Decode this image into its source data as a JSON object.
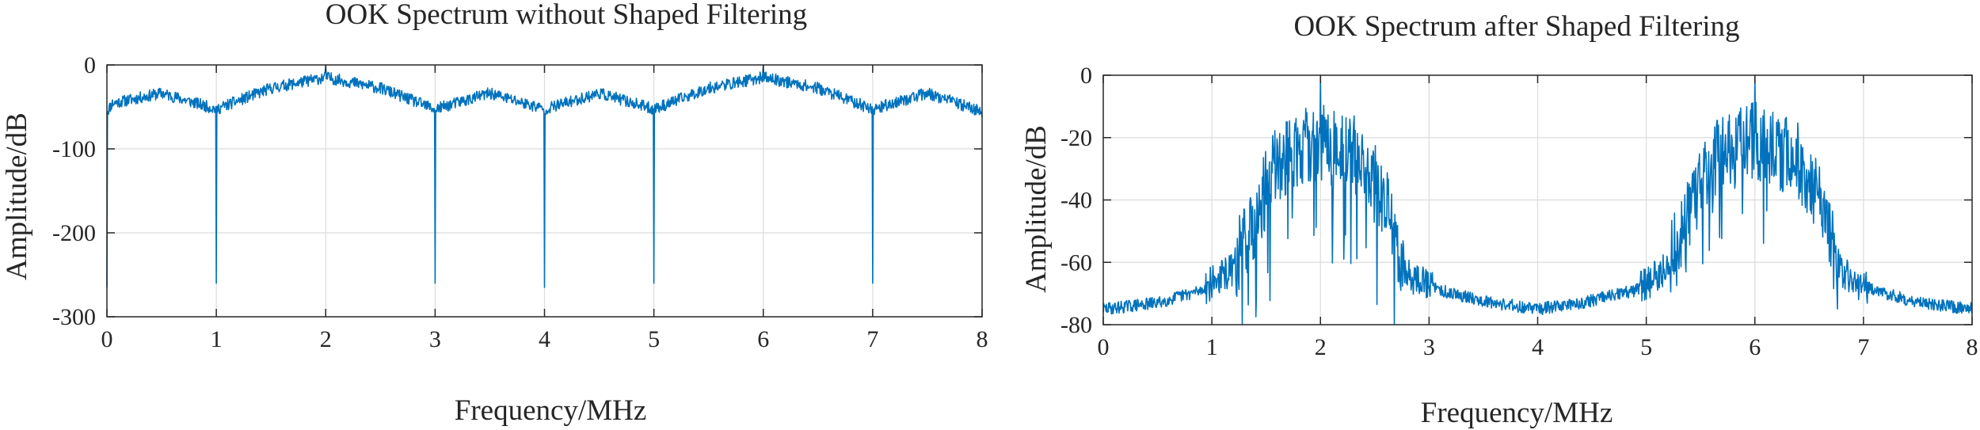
{
  "chart_data": [
    {
      "type": "line",
      "title": "OOK Spectrum without Shaped Filtering",
      "xlabel": "Frequency/MHz",
      "ylabel": "Amplitude/dB",
      "xlim": [
        0,
        8
      ],
      "ylim": [
        -300,
        0
      ],
      "xticks": [
        0,
        1,
        2,
        3,
        4,
        5,
        6,
        7,
        8
      ],
      "yticks": [
        -300,
        -200,
        -100,
        0
      ],
      "grid": true,
      "series_color": "#0072BD",
      "envelope": {
        "x": [
          0,
          0.05,
          0.5,
          1,
          1.5,
          2,
          2.5,
          3,
          3.5,
          4,
          4.5,
          5,
          5.5,
          6,
          6.5,
          7,
          7.5,
          8
        ],
        "y": [
          -55,
          -45,
          -33,
          -52,
          -27,
          -14,
          -27,
          -52,
          -33,
          -52,
          -33,
          -52,
          -27,
          -14,
          -27,
          -52,
          -33,
          -55
        ]
      },
      "notches": [
        {
          "x": 1,
          "y": -260
        },
        {
          "x": 3,
          "y": -260
        },
        {
          "x": 4,
          "y": -265
        },
        {
          "x": 5,
          "y": -260
        },
        {
          "x": 7,
          "y": -260
        }
      ],
      "peaks": [
        {
          "x": 2,
          "y": 0
        },
        {
          "x": 6,
          "y": 0
        }
      ],
      "start_value": -265
    },
    {
      "type": "line",
      "title": "OOK Spectrum after Shaped Filtering",
      "xlabel": "Frequency/MHz",
      "ylabel": "Amplitude/dB",
      "xlim": [
        0,
        8
      ],
      "ylim": [
        -80,
        0
      ],
      "xticks": [
        0,
        1,
        2,
        3,
        4,
        5,
        6,
        7,
        8
      ],
      "yticks": [
        -80,
        -60,
        -40,
        -20,
        0
      ],
      "grid": true,
      "series_color": "#0072BD",
      "envelope": {
        "x": [
          0,
          0.5,
          0.9,
          1.2,
          1.4,
          1.6,
          2,
          2.4,
          2.6,
          2.8,
          3.1,
          3.6,
          4,
          4.4,
          4.9,
          5.2,
          5.4,
          5.6,
          6,
          6.4,
          6.6,
          6.8,
          7.1,
          7.5,
          8
        ],
        "y": [
          -75,
          -73,
          -69,
          -62,
          -45,
          -28,
          -21,
          -27,
          -42,
          -64,
          -69,
          -73,
          -75,
          -73,
          -69,
          -62,
          -45,
          -28,
          -21,
          -27,
          -42,
          -64,
          -69,
          -73,
          -75
        ]
      },
      "peaks": [
        {
          "x": 2,
          "y": 0
        },
        {
          "x": 6,
          "y": 0
        }
      ]
    }
  ]
}
